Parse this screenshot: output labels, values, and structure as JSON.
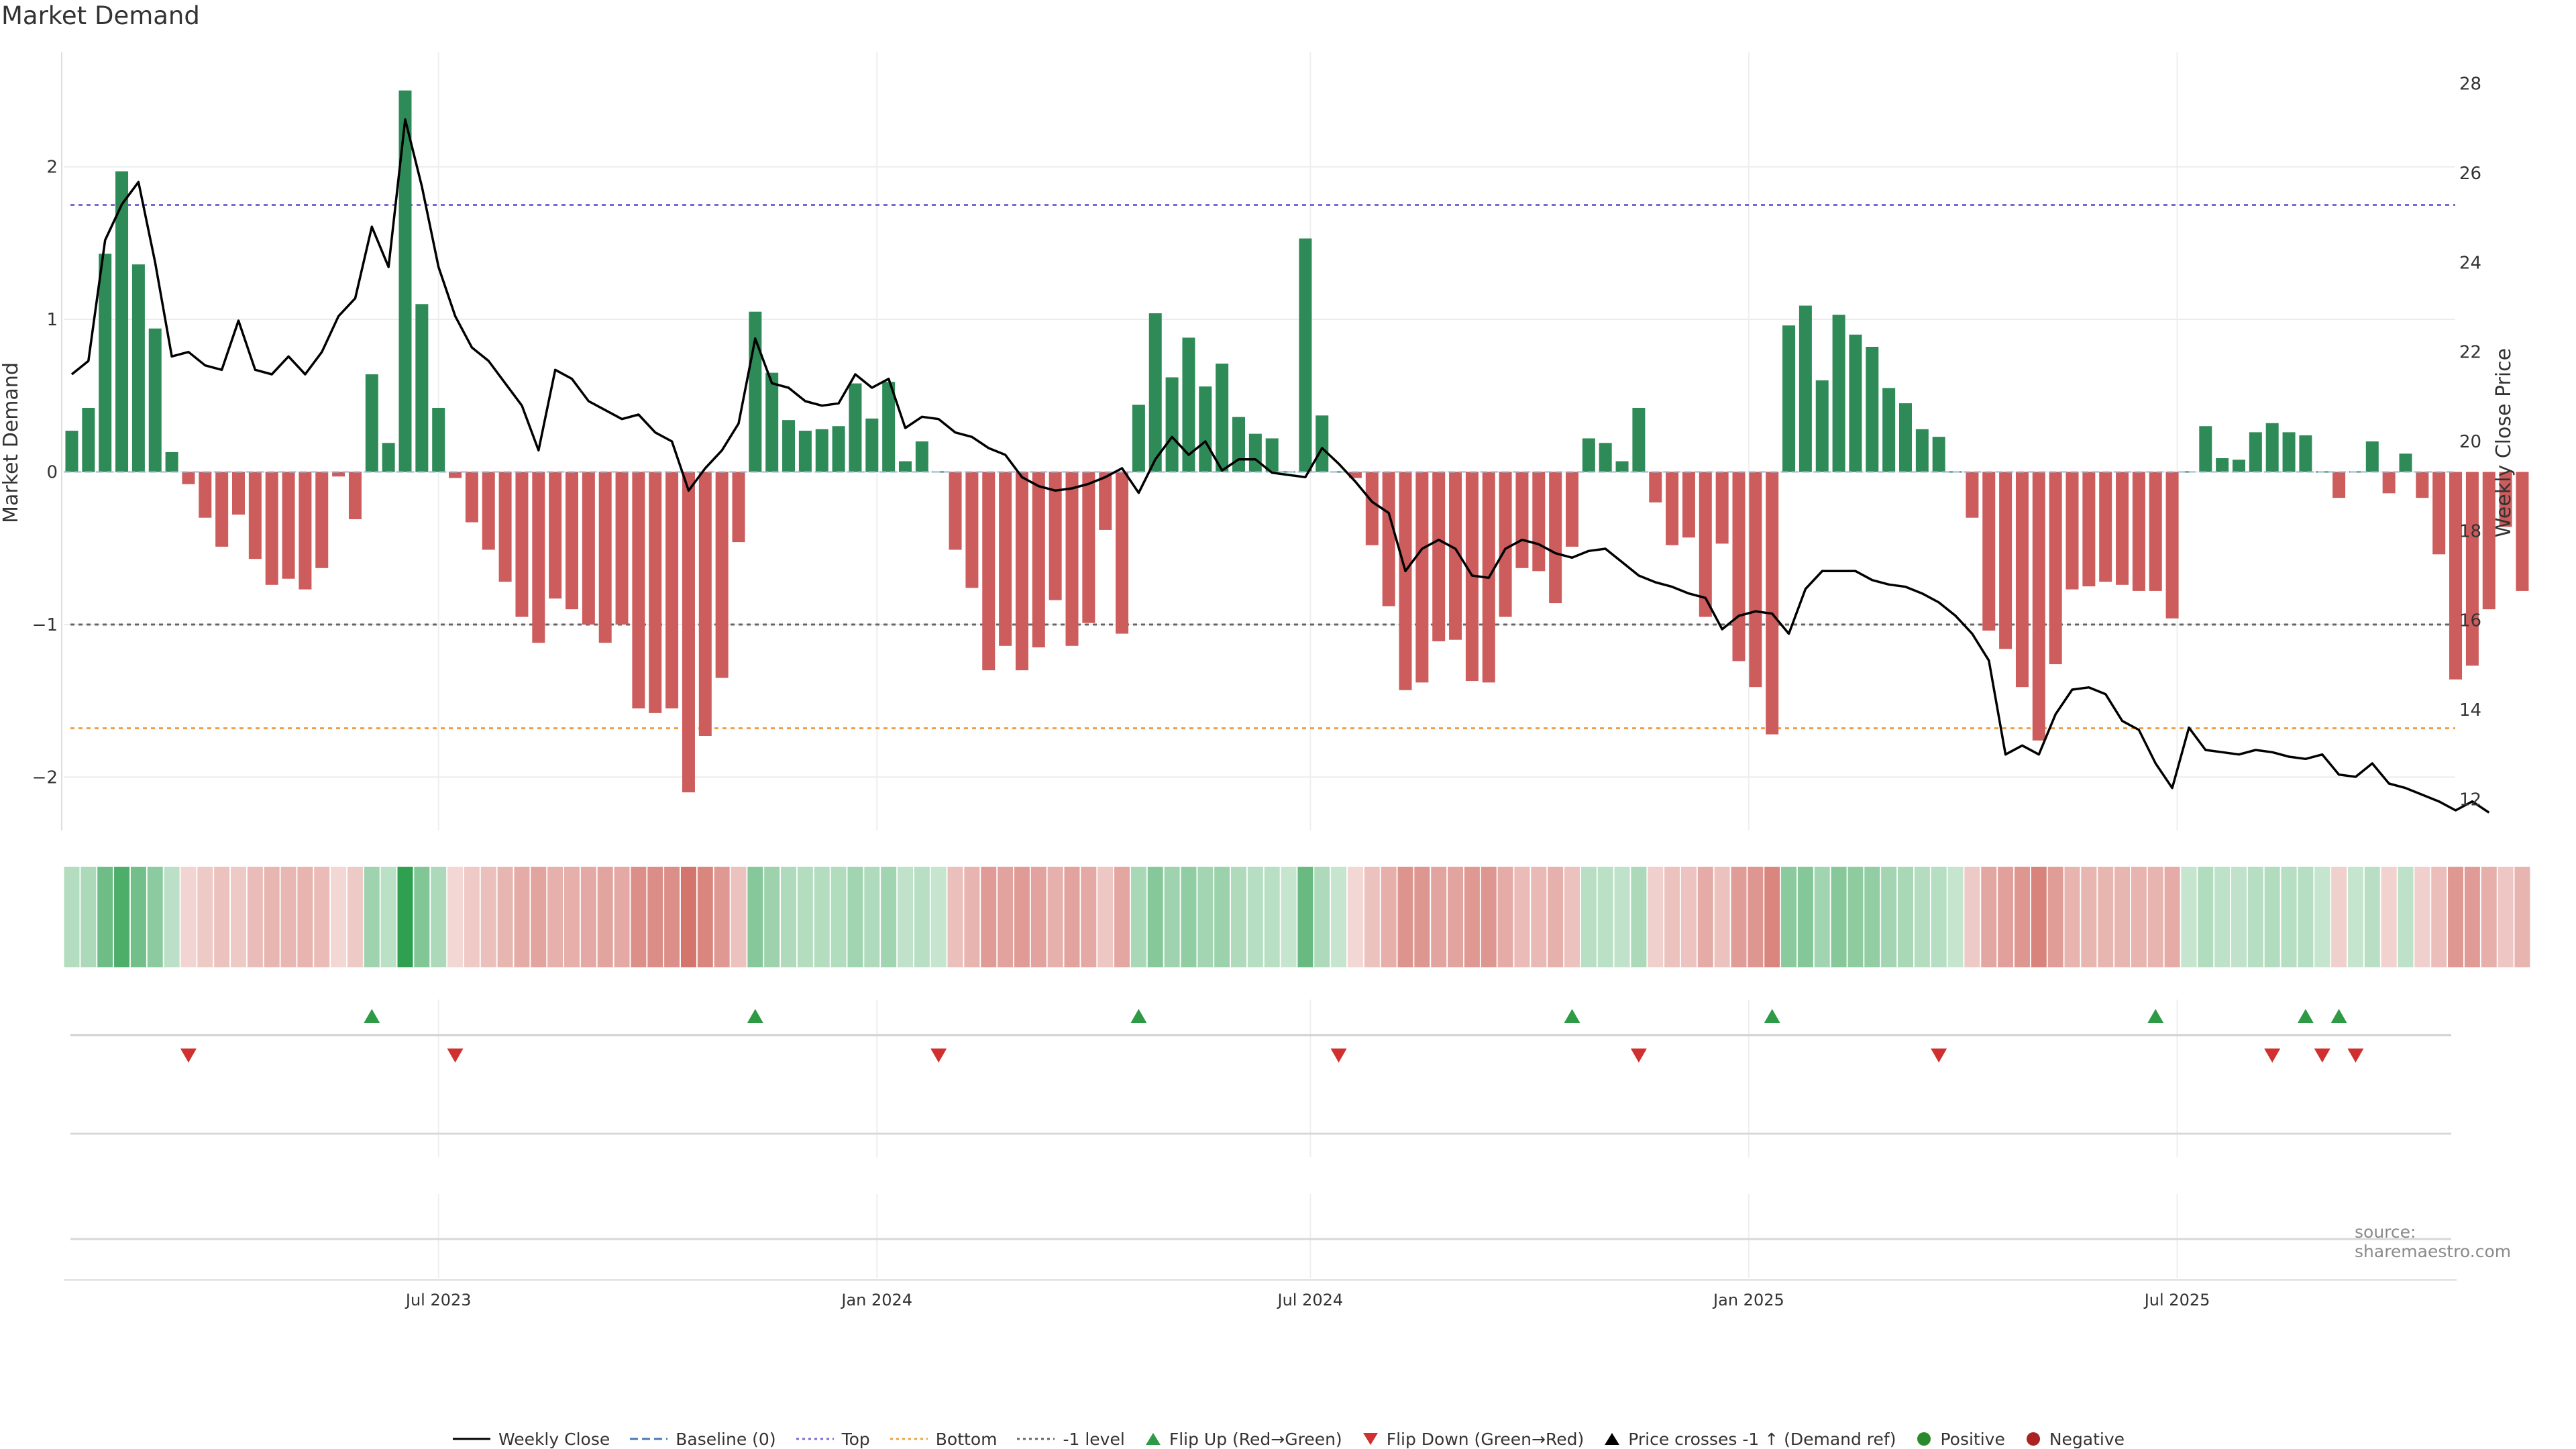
{
  "chart_data": {
    "type": "bar",
    "title": "Market Demand",
    "ylabel": "Market Demand",
    "y2label": "Weekly Close Price",
    "ylim": [
      -2.35,
      2.75
    ],
    "y2lim": [
      11.3,
      28.7
    ],
    "yticks": [
      -2,
      -1,
      0,
      1,
      2
    ],
    "y2ticks": [
      12,
      14,
      16,
      18,
      20,
      22,
      24,
      26,
      28
    ],
    "ytick_labels": [
      "−2",
      "−1",
      "0",
      "1",
      "2"
    ],
    "y2tick_labels": [
      "12",
      "14",
      "16",
      "18",
      "20",
      "22",
      "24",
      "26",
      "28"
    ],
    "xlabel": "",
    "x_ticks": [
      {
        "label": "Jul 2023",
        "week": 22
      },
      {
        "label": "Jan 2024",
        "week": 48.3
      },
      {
        "label": "Jul 2024",
        "week": 74.3
      },
      {
        "label": "Jan 2025",
        "week": 100.6
      },
      {
        "label": "Jul 2025",
        "week": 126.3
      }
    ],
    "weeks": 144,
    "reference_lines": {
      "top": 1.75,
      "minus_one": -1.0,
      "bottom": -1.68
    },
    "series": [
      {
        "name": "Market Demand",
        "values": [
          0.27,
          0.42,
          1.43,
          1.97,
          1.36,
          0.94,
          0.13,
          -0.08,
          -0.3,
          -0.49,
          -0.28,
          -0.57,
          -0.74,
          -0.7,
          -0.77,
          -0.63,
          -0.03,
          -0.31,
          0.64,
          0.19,
          2.5,
          1.1,
          0.42,
          -0.04,
          -0.33,
          -0.51,
          -0.72,
          -0.95,
          -1.12,
          -0.83,
          -0.9,
          -1.0,
          -1.12,
          -1.0,
          -1.55,
          -1.58,
          -1.55,
          -2.1,
          -1.73,
          -1.35,
          -0.46,
          1.05,
          0.65,
          0.34,
          0.27,
          0.28,
          0.3,
          0.58,
          0.35,
          0.59,
          0.07,
          0.2,
          0.0,
          -0.51,
          -0.76,
          -1.3,
          -1.14,
          -1.3,
          -1.15,
          -0.84,
          -1.14,
          -0.99,
          -0.38,
          -1.06,
          0.44,
          1.04,
          0.62,
          0.88,
          0.56,
          0.71,
          0.36,
          0.25,
          0.22,
          0.0,
          1.53,
          0.37,
          0.0,
          -0.04,
          -0.48,
          -0.88,
          -1.43,
          -1.38,
          -1.11,
          -1.1,
          -1.37,
          -1.38,
          -0.95,
          -0.63,
          -0.65,
          -0.86,
          -0.49,
          0.22,
          0.19,
          0.07,
          0.42,
          -0.2,
          -0.48,
          -0.43,
          -0.95,
          -0.47,
          -1.24,
          -1.41,
          -1.72,
          0.96,
          1.09,
          0.6,
          1.03,
          0.9,
          0.82,
          0.55,
          0.45,
          0.28,
          0.23,
          0.0,
          -0.3,
          -1.04,
          -1.16,
          -1.41,
          -1.76,
          -1.26,
          -0.77,
          -0.75,
          -0.72,
          -0.74,
          -0.78,
          -0.78,
          -0.96,
          0.0,
          0.3,
          0.09,
          0.08,
          0.26,
          0.32,
          0.26,
          0.24,
          0.0,
          -0.17,
          0.0,
          0.2,
          -0.14,
          0.12,
          -0.17,
          -0.54,
          -1.36,
          -1.27,
          -0.9,
          -0.36,
          -0.78
        ]
      },
      {
        "name": "Weekly Close",
        "values": [
          21.5,
          21.8,
          24.5,
          25.3,
          25.8,
          24.0,
          21.9,
          22.0,
          21.7,
          21.6,
          22.7,
          21.6,
          21.5,
          21.9,
          21.5,
          22.0,
          22.8,
          23.2,
          24.8,
          23.9,
          27.2,
          25.7,
          23.9,
          22.8,
          22.1,
          21.8,
          21.3,
          20.8,
          19.8,
          21.6,
          21.4,
          20.9,
          20.7,
          20.5,
          20.6,
          20.2,
          20.0,
          18.9,
          19.4,
          19.8,
          20.4,
          22.3,
          21.3,
          21.2,
          20.9,
          20.8,
          20.85,
          21.5,
          21.2,
          21.4,
          20.3,
          20.55,
          20.5,
          20.2,
          20.1,
          19.85,
          19.7,
          19.2,
          19.0,
          18.9,
          18.95,
          19.05,
          19.2,
          19.4,
          18.85,
          19.6,
          20.1,
          19.7,
          20.0,
          19.35,
          19.6,
          19.6,
          19.3,
          19.25,
          19.2,
          19.85,
          19.5,
          19.1,
          18.65,
          18.4,
          17.1,
          17.6,
          17.8,
          17.6,
          17.0,
          16.95,
          17.6,
          17.8,
          17.7,
          17.5,
          17.4,
          17.55,
          17.6,
          17.3,
          17.0,
          16.85,
          16.75,
          16.6,
          16.5,
          15.8,
          16.1,
          16.2,
          16.15,
          15.7,
          16.7,
          17.1,
          17.1,
          17.1,
          16.9,
          16.8,
          16.75,
          16.6,
          16.4,
          16.1,
          15.7,
          15.1,
          13.0,
          13.2,
          13.0,
          13.9,
          14.45,
          14.5,
          14.35,
          13.75,
          13.55,
          12.8,
          12.25,
          13.6,
          13.1,
          13.05,
          13.0,
          13.1,
          13.05,
          12.95,
          12.9,
          13.0,
          12.55,
          12.5,
          12.8,
          12.35,
          12.25,
          12.1,
          11.95,
          11.75,
          11.95,
          11.7
        ]
      }
    ],
    "flip_up_weeks": [
      18,
      41,
      64,
      90,
      102,
      125,
      134,
      136
    ],
    "flip_down_weeks": [
      7,
      23,
      52,
      76,
      94,
      112,
      132,
      135,
      137
    ]
  },
  "legend": {
    "items": [
      {
        "label": "Weekly Close",
        "kind": "line-solid",
        "color": "#000000"
      },
      {
        "label": "Baseline (0)",
        "kind": "line-dashed",
        "color": "#4a78b8"
      },
      {
        "label": "Top",
        "kind": "line-dotted",
        "color": "#7b6ad0"
      },
      {
        "label": "Bottom",
        "kind": "line-dotted",
        "color": "#f0a040"
      },
      {
        "label": "-1 level",
        "kind": "line-dotted",
        "color": "#666666"
      },
      {
        "label": "Flip Up (Red→Green)",
        "kind": "tri-up",
        "color": "#2e9a46"
      },
      {
        "label": "Flip Down (Green→Red)",
        "kind": "tri-down",
        "color": "#d03030"
      },
      {
        "label": "Price crosses -1 ↑ (Demand ref)",
        "kind": "tri-up",
        "color": "#000000"
      },
      {
        "label": "Positive",
        "kind": "dot",
        "color": "#2a8a2a"
      },
      {
        "label": "Negative",
        "kind": "dot",
        "color": "#aa2222"
      }
    ]
  },
  "source": "source: sharemaestro.com",
  "colors": {
    "positive_bar": "#2e8b57",
    "negative_bar": "#cd5c5c",
    "price_line": "#000000",
    "top_line": "#7b6ad0",
    "bottom_line": "#f0a040",
    "minus_one_line": "#666666"
  }
}
